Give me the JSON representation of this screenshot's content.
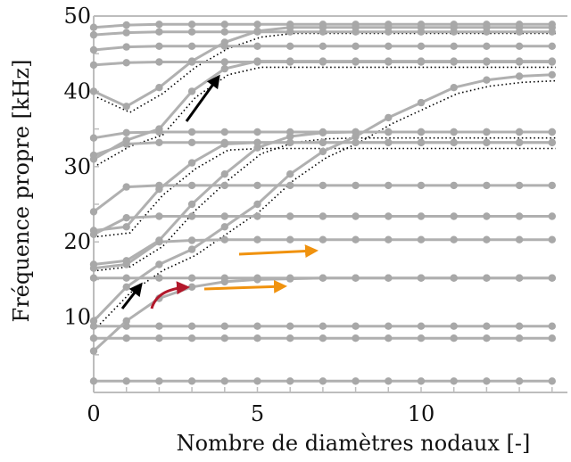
{
  "chart_data": {
    "type": "line",
    "xlabel": "Nombre de diamètres nodaux [-]",
    "ylabel": "Fréquence propre [kHz]",
    "xlim": [
      0,
      14
    ],
    "ylim": [
      0,
      50
    ],
    "xticks": [
      0,
      5,
      10
    ],
    "yticks": [
      10,
      20,
      30,
      40,
      50
    ],
    "grid": false,
    "line_color": "#b0b0b0",
    "marker_color": "#a8a8a8",
    "reference_color": "#000000",
    "arrow_colors": {
      "black": "#000000",
      "orange": "#f0920e",
      "red": "#b2182b"
    },
    "series": [
      {
        "x": [
          0,
          1,
          2,
          3,
          4,
          5,
          6,
          7,
          8,
          9,
          10,
          11,
          12,
          13,
          14
        ],
        "y": [
          1.5,
          1.5,
          1.5,
          1.5,
          1.5,
          1.5,
          1.5,
          1.5,
          1.5,
          1.5,
          1.5,
          1.5,
          1.5,
          1.5,
          1.5
        ]
      },
      {
        "x": [
          0,
          1,
          2,
          3,
          4,
          5,
          6,
          7,
          8,
          9,
          10,
          11,
          12,
          13,
          14
        ],
        "y": [
          7.2,
          7.2,
          7.2,
          7.2,
          7.2,
          7.2,
          7.2,
          7.2,
          7.2,
          7.2,
          7.2,
          7.2,
          7.2,
          7.2,
          7.2
        ]
      },
      {
        "x": [
          0,
          1,
          2,
          3,
          4,
          5,
          6,
          7,
          8,
          9,
          10,
          11,
          12,
          13,
          14
        ],
        "y": [
          8.8,
          8.8,
          8.8,
          8.8,
          8.8,
          8.8,
          8.8,
          8.8,
          8.8,
          8.8,
          8.8,
          8.8,
          8.8,
          8.8,
          8.8
        ]
      },
      {
        "x": [
          0,
          1,
          2,
          3,
          4,
          5,
          6,
          7,
          8,
          9,
          10,
          11,
          12,
          13,
          14
        ],
        "y": [
          5.5,
          9.5,
          12.5,
          14.0,
          14.7,
          15.0,
          15.1,
          15.2,
          15.2,
          15.2,
          15.2,
          15.2,
          15.2,
          15.2,
          15.2
        ]
      },
      {
        "x": [
          0,
          1,
          2,
          3,
          4,
          5,
          6,
          7,
          8,
          9,
          10,
          11,
          12,
          13,
          14
        ],
        "y": [
          15.2,
          15.2,
          15.2,
          15.2,
          15.2,
          15.2,
          15.2,
          15.2,
          15.2,
          15.2,
          15.2,
          15.2,
          15.2,
          15.2,
          15.2
        ]
      },
      {
        "x": [
          0,
          1,
          2,
          3,
          4,
          5,
          6,
          7,
          8,
          9,
          10,
          11,
          12,
          13,
          14
        ],
        "y": [
          16.5,
          17.0,
          20.0,
          20.2,
          20.3,
          20.3,
          20.3,
          20.3,
          20.3,
          20.3,
          20.3,
          20.3,
          20.3,
          20.3,
          20.3
        ]
      },
      {
        "x": [
          0,
          1,
          2,
          3,
          4,
          5,
          6,
          7,
          8,
          9,
          10,
          11,
          12,
          13,
          14
        ],
        "y": [
          21.0,
          23.2,
          23.4,
          23.4,
          23.4,
          23.4,
          23.4,
          23.4,
          23.4,
          23.4,
          23.4,
          23.4,
          23.4,
          23.4,
          23.4
        ]
      },
      {
        "x": [
          0,
          1,
          2,
          3,
          4,
          5,
          6,
          7,
          8,
          9,
          10,
          11,
          12,
          13,
          14
        ],
        "y": [
          24.0,
          27.3,
          27.5,
          27.5,
          27.5,
          27.5,
          27.5,
          27.5,
          27.5,
          27.5,
          27.5,
          27.5,
          27.5,
          27.5,
          27.5
        ]
      },
      {
        "x": [
          0,
          1,
          2,
          3,
          4,
          5,
          6,
          7,
          8,
          9,
          10,
          11,
          12,
          13,
          14
        ],
        "y": [
          31.5,
          33.0,
          33.2,
          33.2,
          33.2,
          33.2,
          33.2,
          33.2,
          33.2,
          33.2,
          33.2,
          33.2,
          33.2,
          33.2,
          33.2
        ]
      },
      {
        "x": [
          0,
          1,
          2,
          3,
          4,
          5,
          6,
          7,
          8,
          9,
          10,
          11,
          12,
          13,
          14
        ],
        "y": [
          33.8,
          34.5,
          34.6,
          34.6,
          34.6,
          34.6,
          34.6,
          34.6,
          34.6,
          34.6,
          34.6,
          34.6,
          34.6,
          34.6,
          34.6
        ]
      },
      {
        "x": [
          0,
          1,
          2,
          3,
          4,
          5,
          6,
          7,
          8,
          9,
          10,
          11,
          12,
          13,
          14
        ],
        "y": [
          43.5,
          43.8,
          43.9,
          43.9,
          43.9,
          43.9,
          43.9,
          43.9,
          43.9,
          43.9,
          43.9,
          43.9,
          43.9,
          43.9,
          43.9
        ]
      },
      {
        "x": [
          0,
          1,
          2,
          3,
          4,
          5,
          6,
          7,
          8,
          9,
          10,
          11,
          12,
          13,
          14
        ],
        "y": [
          45.5,
          45.9,
          46.0,
          46.0,
          46.0,
          46.0,
          46.0,
          46.0,
          46.0,
          46.0,
          46.0,
          46.0,
          46.0,
          46.0,
          46.0
        ]
      },
      {
        "x": [
          0,
          1,
          2,
          3,
          4,
          5,
          6,
          7,
          8,
          9,
          10,
          11,
          12,
          13,
          14
        ],
        "y": [
          47.5,
          47.8,
          47.9,
          47.9,
          47.9,
          47.9,
          47.9,
          47.9,
          47.9,
          47.9,
          47.9,
          47.9,
          47.9,
          47.9,
          47.9
        ]
      },
      {
        "x": [
          0,
          1,
          2,
          3,
          4,
          5,
          6,
          7,
          8,
          9,
          10,
          11,
          12,
          13,
          14
        ],
        "y": [
          48.5,
          48.8,
          48.9,
          48.9,
          48.9,
          48.9,
          48.9,
          48.9,
          48.9,
          48.9,
          48.9,
          48.9,
          48.9,
          48.9,
          48.9
        ]
      },
      {
        "x": [
          0,
          1,
          2,
          3,
          4,
          5,
          6,
          7,
          8,
          9,
          10,
          11,
          12,
          13,
          14
        ],
        "y": [
          9.5,
          14.0,
          17.0,
          19.0,
          22.0,
          25.0,
          29.0,
          32.0,
          34.0,
          36.5,
          38.5,
          40.5,
          41.5,
          42.0,
          42.2
        ]
      },
      {
        "x": [
          0,
          1,
          2,
          3,
          4,
          5,
          6,
          7,
          8,
          9,
          10,
          11,
          12,
          13,
          14
        ],
        "y": [
          17.0,
          17.5,
          20.2,
          25.0,
          29.0,
          32.5,
          34.0,
          34.5,
          34.6,
          34.6,
          34.6,
          34.6,
          34.6,
          34.6,
          34.6
        ]
      },
      {
        "x": [
          0,
          1,
          2,
          3,
          4,
          5,
          6,
          7,
          8,
          9,
          10,
          11,
          12,
          13,
          14
        ],
        "y": [
          21.5,
          22.0,
          27.0,
          30.5,
          33.0,
          33.2,
          33.2,
          33.2,
          33.2,
          33.2,
          33.2,
          33.2,
          33.2,
          33.2,
          33.2
        ]
      },
      {
        "x": [
          0,
          1,
          2,
          3,
          4,
          5,
          6,
          7,
          8,
          9,
          10,
          11,
          12,
          13,
          14
        ],
        "y": [
          31.0,
          33.5,
          35.0,
          40.0,
          43.0,
          44.0,
          44.0,
          44.0,
          44.0,
          44.0,
          44.0,
          44.0,
          44.0,
          44.0,
          44.0
        ]
      },
      {
        "x": [
          0,
          1,
          2,
          3,
          4,
          5,
          6,
          7,
          8,
          9,
          10,
          11,
          12,
          13,
          14
        ],
        "y": [
          40.0,
          38.0,
          40.5,
          44.0,
          46.5,
          48.0,
          48.5,
          48.5,
          48.5,
          48.5,
          48.5,
          48.5,
          48.5,
          48.5,
          48.5
        ]
      }
    ]
  }
}
